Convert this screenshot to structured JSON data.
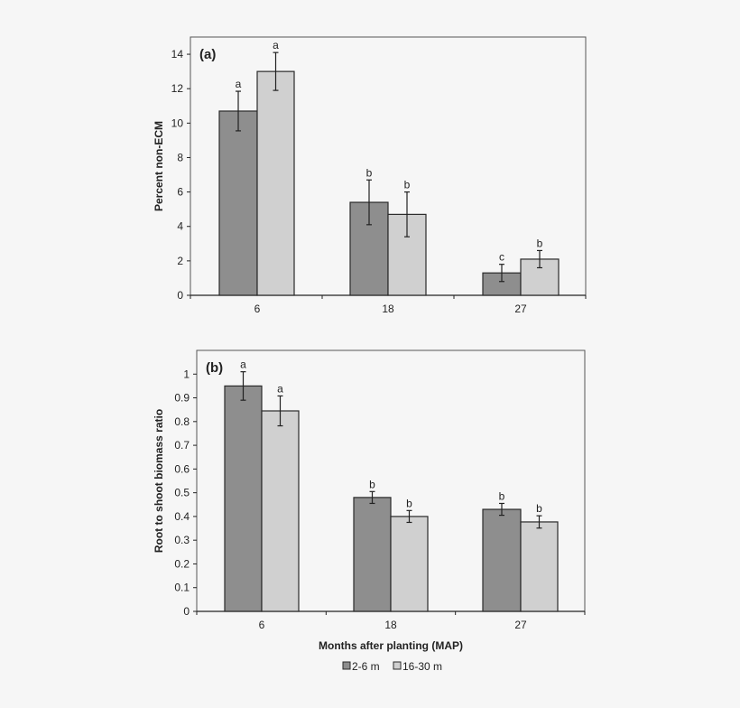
{
  "colors": {
    "background": "#f6f6f6",
    "series_dark": "#8e8e8e",
    "series_light": "#d0d0d0",
    "stroke": "#2a2a2a"
  },
  "legend": {
    "placement": "bottom-center",
    "entries": [
      "2-6 m",
      "16-30 m"
    ]
  },
  "chart_data": [
    {
      "type": "bar",
      "panel_label": "(a)",
      "categories": [
        "6",
        "18",
        "27"
      ],
      "xlabel": "",
      "ylabel": "Percent non-ECM",
      "ylim": [
        0,
        15
      ],
      "yticks": [
        "0",
        "2",
        "4",
        "6",
        "8",
        "10",
        "12",
        "14"
      ],
      "grid": false,
      "series": [
        {
          "name": "2-6 m",
          "values": [
            10.7,
            5.4,
            1.3
          ],
          "errors": [
            1.15,
            1.3,
            0.5
          ],
          "letters": [
            "a",
            "b",
            "c"
          ]
        },
        {
          "name": "16-30 m",
          "values": [
            13.0,
            4.7,
            2.1
          ],
          "errors": [
            1.1,
            1.3,
            0.5
          ],
          "letters": [
            "a",
            "b",
            "b"
          ]
        }
      ]
    },
    {
      "type": "bar",
      "panel_label": "(b)",
      "categories": [
        "6",
        "18",
        "27"
      ],
      "xlabel": "Months after planting (MAP)",
      "ylabel": "Root to shoot biomass ratio",
      "ylim": [
        0,
        1.1
      ],
      "yticks": [
        "0",
        "0.1",
        "0.2",
        "0.3",
        "0.4",
        "0.5",
        "0.6",
        "0.7",
        "0.8",
        "0.9",
        "1"
      ],
      "grid": false,
      "series": [
        {
          "name": "2-6 m",
          "values": [
            0.95,
            0.48,
            0.43
          ],
          "errors": [
            0.06,
            0.025,
            0.025
          ],
          "letters": [
            "a",
            "b",
            "b"
          ]
        },
        {
          "name": "16-30 m",
          "values": [
            0.845,
            0.4,
            0.377
          ],
          "errors": [
            0.063,
            0.025,
            0.026
          ],
          "letters": [
            "a",
            "b",
            "b"
          ]
        }
      ]
    }
  ]
}
